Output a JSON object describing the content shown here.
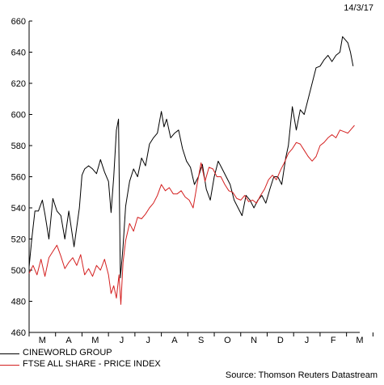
{
  "date_label": "14/3/17",
  "source": "Source: Thomson Reuters Datastream",
  "colors": {
    "cineworld": "#000000",
    "ftse": "#d42020",
    "axis": "#000000"
  },
  "chart_data": {
    "type": "line",
    "title": "",
    "ylim": [
      460,
      660
    ],
    "yticks": [
      460,
      480,
      500,
      520,
      540,
      560,
      580,
      600,
      620,
      640,
      660
    ],
    "x_tick_labels": [
      "M",
      "A",
      "M",
      "J",
      "J",
      "A",
      "S",
      "O",
      "N",
      "D",
      "J",
      "F",
      "M"
    ],
    "grid": false,
    "legend_position": "bottom-left",
    "x_domain": [
      0,
      12.5
    ],
    "series": [
      {
        "name": "CINEWORLD GROUP",
        "color": "#000000",
        "x": [
          0,
          0.1,
          0.22,
          0.35,
          0.5,
          0.6,
          0.75,
          0.9,
          1.05,
          1.2,
          1.35,
          1.5,
          1.7,
          1.9,
          2.0,
          2.1,
          2.25,
          2.4,
          2.55,
          2.7,
          2.85,
          3.0,
          3.1,
          3.2,
          3.3,
          3.38,
          3.45,
          3.55,
          3.65,
          3.8,
          3.95,
          4.1,
          4.25,
          4.4,
          4.55,
          4.7,
          4.85,
          5.0,
          5.1,
          5.2,
          5.35,
          5.5,
          5.65,
          5.8,
          5.95,
          6.1,
          6.25,
          6.4,
          6.55,
          6.7,
          6.85,
          7.0,
          7.15,
          7.3,
          7.45,
          7.6,
          7.75,
          7.9,
          8.05,
          8.2,
          8.35,
          8.5,
          8.65,
          8.8,
          8.95,
          9.1,
          9.25,
          9.4,
          9.55,
          9.7,
          9.8,
          9.95,
          10.1,
          10.25,
          10.4,
          10.55,
          10.7,
          10.85,
          11.0,
          11.15,
          11.3,
          11.45,
          11.6,
          11.75,
          11.85,
          11.95,
          12.05,
          12.15,
          12.25
        ],
        "values": [
          502,
          520,
          538,
          538,
          545,
          536,
          520,
          546,
          538,
          535,
          520,
          538,
          515,
          540,
          561,
          565,
          567,
          565,
          562,
          571,
          563,
          557,
          537,
          560,
          590,
          597,
          495,
          515,
          541,
          557,
          565,
          560,
          572,
          567,
          581,
          585,
          588,
          602,
          592,
          597,
          585,
          588,
          590,
          578,
          570,
          566,
          555,
          560,
          568,
          552,
          545,
          560,
          570,
          565,
          560,
          555,
          545,
          540,
          535,
          548,
          545,
          540,
          545,
          548,
          543,
          552,
          560,
          560,
          555,
          572,
          580,
          605,
          590,
          603,
          600,
          610,
          620,
          630,
          631,
          635,
          638,
          634,
          638,
          640,
          650,
          648,
          646,
          640,
          631
        ]
      },
      {
        "name": "FTSE ALL SHARE - PRICE INDEX",
        "color": "#d42020",
        "x": [
          0,
          0.15,
          0.3,
          0.45,
          0.6,
          0.75,
          0.9,
          1.05,
          1.2,
          1.35,
          1.5,
          1.65,
          1.8,
          1.95,
          2.1,
          2.25,
          2.4,
          2.55,
          2.7,
          2.85,
          3.0,
          3.1,
          3.2,
          3.3,
          3.4,
          3.47,
          3.55,
          3.65,
          3.8,
          3.95,
          4.1,
          4.25,
          4.4,
          4.55,
          4.7,
          4.85,
          5.0,
          5.15,
          5.3,
          5.45,
          5.6,
          5.75,
          5.9,
          6.05,
          6.2,
          6.35,
          6.5,
          6.65,
          6.8,
          6.95,
          7.1,
          7.25,
          7.4,
          7.55,
          7.7,
          7.85,
          8.0,
          8.15,
          8.3,
          8.45,
          8.6,
          8.75,
          8.9,
          9.05,
          9.2,
          9.35,
          9.5,
          9.65,
          9.8,
          9.95,
          10.1,
          10.25,
          10.4,
          10.55,
          10.7,
          10.85,
          11.0,
          11.15,
          11.3,
          11.45,
          11.6,
          11.75,
          11.9,
          12.05,
          12.2,
          12.3
        ],
        "values": [
          498,
          503,
          497,
          507,
          496,
          508,
          512,
          516,
          509,
          501,
          505,
          508,
          503,
          510,
          497,
          501,
          496,
          503,
          500,
          507,
          497,
          485,
          490,
          482,
          497,
          478,
          505,
          519,
          530,
          525,
          534,
          533,
          536,
          540,
          543,
          548,
          555,
          551,
          553,
          549,
          549,
          551,
          547,
          545,
          540,
          555,
          569,
          557,
          566,
          565,
          560,
          560,
          555,
          551,
          550,
          546,
          545,
          548,
          544,
          545,
          543,
          548,
          552,
          558,
          561,
          558,
          564,
          569,
          575,
          578,
          582,
          581,
          577,
          573,
          570,
          573,
          580,
          582,
          585,
          587,
          585,
          590,
          589,
          588,
          591,
          593
        ]
      }
    ]
  },
  "legend": [
    {
      "label": "CINEWORLD GROUP",
      "color": "#000000"
    },
    {
      "label": "FTSE ALL SHARE - PRICE INDEX",
      "color": "#d42020"
    }
  ]
}
